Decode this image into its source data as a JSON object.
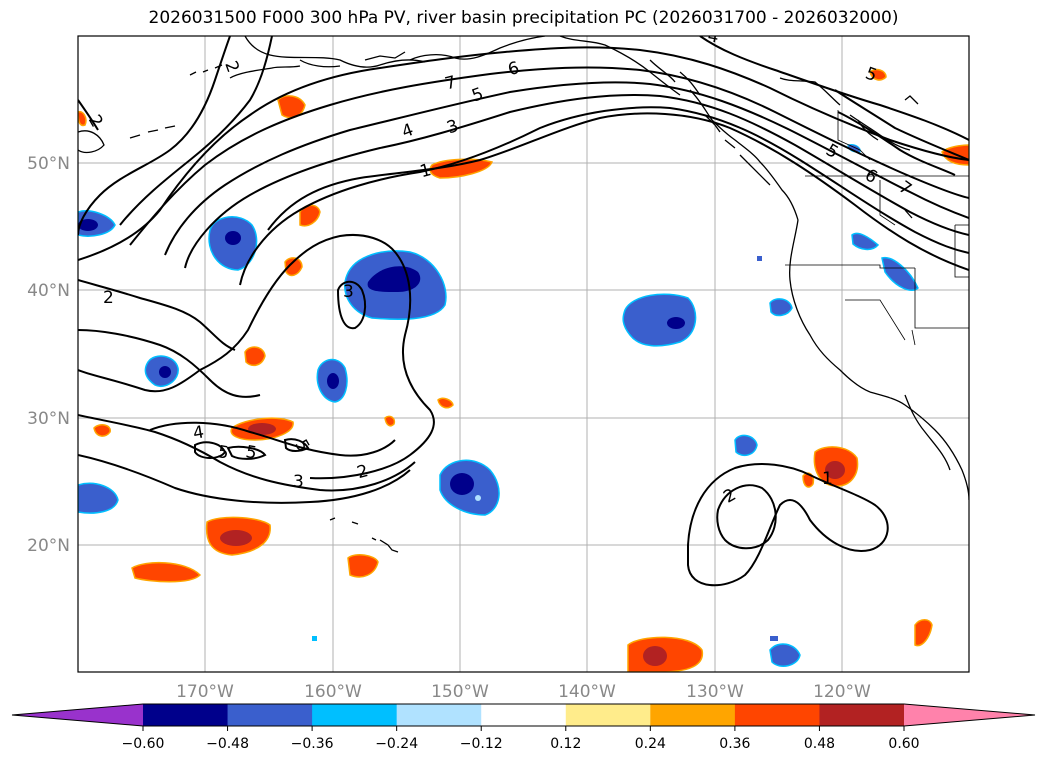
{
  "title": "2026031500 F000 300 hPa PV, river basin precipitation PC (2026031700 - 2026032000)",
  "lat_labels": [
    "50°N",
    "40°N",
    "30°N",
    "20°N"
  ],
  "lon_labels": [
    "170°W",
    "160°W",
    "150°W",
    "140°W",
    "130°W",
    "120°W"
  ],
  "pv_labels": [
    "2",
    "2",
    "7",
    "6",
    "5",
    "4",
    "3",
    "1",
    "2",
    "3",
    "4",
    "5",
    "5",
    "5",
    "3",
    "2",
    "2",
    "1",
    "5",
    "6",
    "7",
    "5",
    "4"
  ],
  "colorbar": {
    "colors": [
      "#9932cc",
      "#00008b",
      "#3a5fcd",
      "#00bfff",
      "#b0e2ff",
      "#ffffff",
      "#ffec8b",
      "#ffa500",
      "#ff4500",
      "#b22222",
      "#ff82ab"
    ],
    "ticks": [
      "−0.60",
      "−0.48",
      "−0.36",
      "−0.24",
      "−0.12",
      "0.12",
      "0.24",
      "0.36",
      "0.48",
      "0.60"
    ]
  }
}
